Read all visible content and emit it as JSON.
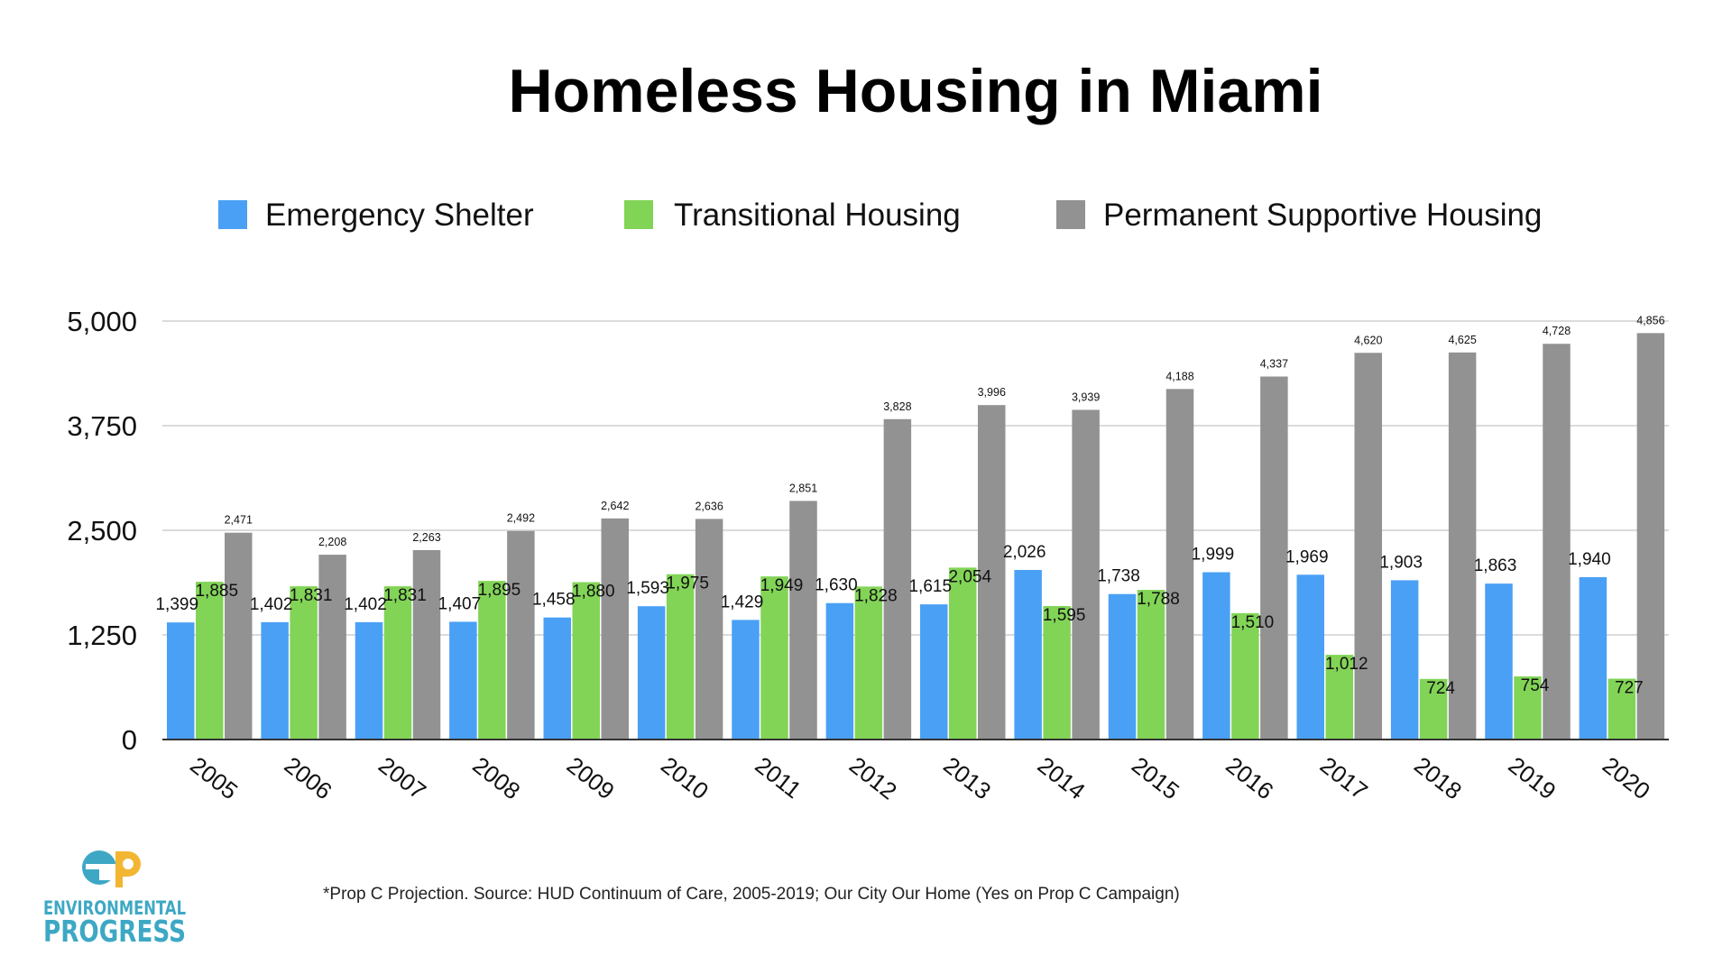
{
  "chart_data": {
    "type": "bar",
    "title": "Homeless Housing in Miami",
    "xlabel": "",
    "ylabel": "",
    "ylim": [
      0,
      5000
    ],
    "yticks": [
      "0",
      "1,250",
      "2,500",
      "3,750",
      "5,000"
    ],
    "ytick_values": [
      0,
      1250,
      2500,
      3750,
      5000
    ],
    "grid": true,
    "legend_position": "top",
    "categories": [
      "2005",
      "2006",
      "2007",
      "2008",
      "2009",
      "2010",
      "2011",
      "2012",
      "2013",
      "2014",
      "2015",
      "2016",
      "2017",
      "2018",
      "2019",
      "2020"
    ],
    "series": [
      {
        "name": "Emergency Shelter",
        "color": "#4aa0f5",
        "values": [
          1399,
          1402,
          1402,
          1407,
          1458,
          1593,
          1429,
          1630,
          1615,
          2026,
          1738,
          1999,
          1969,
          1903,
          1863,
          1940
        ],
        "labels": [
          "1,399",
          "1,402",
          "1,402",
          "1,407",
          "1,458",
          "1,593",
          "1,429",
          "1,630",
          "1,615",
          "2,026",
          "1,738",
          "1,999",
          "1,969",
          "1,903",
          "1,863",
          "1,940"
        ]
      },
      {
        "name": "Transitional Housing",
        "color": "#82d457",
        "values": [
          1885,
          1831,
          1831,
          1895,
          1880,
          1975,
          1949,
          1828,
          2054,
          1595,
          1788,
          1510,
          1012,
          724,
          754,
          727
        ],
        "labels": [
          "1,885",
          "1,831",
          "1,831",
          "1,895",
          "1,880",
          "1,975",
          "1,949",
          "1,828",
          "2,054",
          "1,595",
          "1,788",
          "1,510",
          "1,012",
          "724",
          "754",
          "727"
        ]
      },
      {
        "name": "Permanent Supportive Housing",
        "color": "#929292",
        "values": [
          2471,
          2208,
          2263,
          2492,
          2642,
          2636,
          2851,
          3828,
          3996,
          3939,
          4188,
          4337,
          4620,
          4625,
          4728,
          4856
        ],
        "labels": [
          "2,471",
          "2,208",
          "2,263",
          "2,492",
          "2,642",
          "2,636",
          "2,851",
          "3,828",
          "3,996",
          "3,939",
          "4,188",
          "4,337",
          "4,620",
          "4,625",
          "4,728",
          "4,856"
        ]
      }
    ]
  },
  "footnote": "*Prop C Projection. Source: HUD Continuum of Care, 2005-2019; Our City Our Home (Yes on Prop C Campaign)",
  "logo": {
    "line1": "ENVIRONMENTAL",
    "line2": "PROGRESS",
    "icon": "ep-logo-icon",
    "colors": {
      "orange": "#f2b632",
      "teal": "#3ea8c4"
    }
  }
}
